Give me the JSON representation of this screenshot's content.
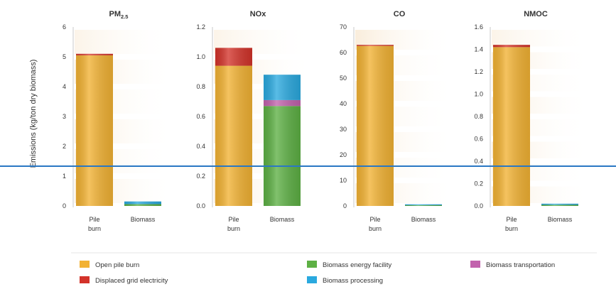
{
  "chart_data": {
    "type": "bar",
    "stacked": true,
    "ylabel": "Emissions (kg/ton dry biomass)",
    "categories": [
      "Pile\nburn",
      "Biomass"
    ],
    "series_colors": {
      "Open pile burn": "#f2b233",
      "Displaced grid electricity": "#d3332a",
      "Biomass energy facility": "#5db044",
      "Biomass transportation": "#c262ad",
      "Biomass processing": "#2aa9df"
    },
    "grid": false,
    "legend_position": "bottom",
    "legend": [
      [
        "Open pile burn",
        "Biomass energy facility",
        "Biomass transportation"
      ],
      [
        "Displaced grid electricity",
        "Biomass processing"
      ]
    ],
    "panels": [
      {
        "title": "PM",
        "title_sub": "2.5",
        "ylim": [
          0,
          6
        ],
        "ticks": [
          "0",
          "1",
          "2",
          "3",
          "4",
          "5",
          "6"
        ],
        "stacks": [
          [
            {
              "series": "Open pile burn",
              "value": 5.05
            },
            {
              "series": "Displaced grid electricity",
              "value": 0.05
            }
          ],
          [
            {
              "series": "Biomass energy facility",
              "value": 0.06
            },
            {
              "series": "Biomass processing",
              "value": 0.09
            }
          ]
        ]
      },
      {
        "title": "NOx",
        "ylim": [
          0,
          1.2
        ],
        "ticks": [
          "0.0",
          "0.2",
          "0.4",
          "0.6",
          "0.8",
          "1.0",
          "1.2"
        ],
        "stacks": [
          [
            {
              "series": "Open pile burn",
              "value": 0.94
            },
            {
              "series": "Displaced grid electricity",
              "value": 0.12
            }
          ],
          [
            {
              "series": "Biomass energy facility",
              "value": 0.67
            },
            {
              "series": "Biomass transportation",
              "value": 0.04
            },
            {
              "series": "Biomass processing",
              "value": 0.17
            }
          ]
        ]
      },
      {
        "title": "CO",
        "ylim": [
          0,
          70
        ],
        "ticks": [
          "0",
          "10",
          "20",
          "30",
          "40",
          "50",
          "60",
          "70"
        ],
        "stacks": [
          [
            {
              "series": "Open pile burn",
              "value": 62.6
            },
            {
              "series": "Displaced grid electricity",
              "value": 0.4
            }
          ],
          [
            {
              "series": "Biomass energy facility",
              "value": 0.3
            },
            {
              "series": "Biomass processing",
              "value": 0.2
            }
          ]
        ]
      },
      {
        "title": "NMOC",
        "ylim": [
          0,
          1.6
        ],
        "ticks": [
          "0.0",
          "0.2",
          "0.4",
          "0.6",
          "0.8",
          "1.0",
          "1.2",
          "1.4",
          "1.6"
        ],
        "stacks": [
          [
            {
              "series": "Open pile burn",
              "value": 1.42
            },
            {
              "series": "Displaced grid electricity",
              "value": 0.02
            }
          ],
          [
            {
              "series": "Biomass energy facility",
              "value": 0.01
            },
            {
              "series": "Biomass processing",
              "value": 0.01
            }
          ]
        ]
      }
    ]
  }
}
